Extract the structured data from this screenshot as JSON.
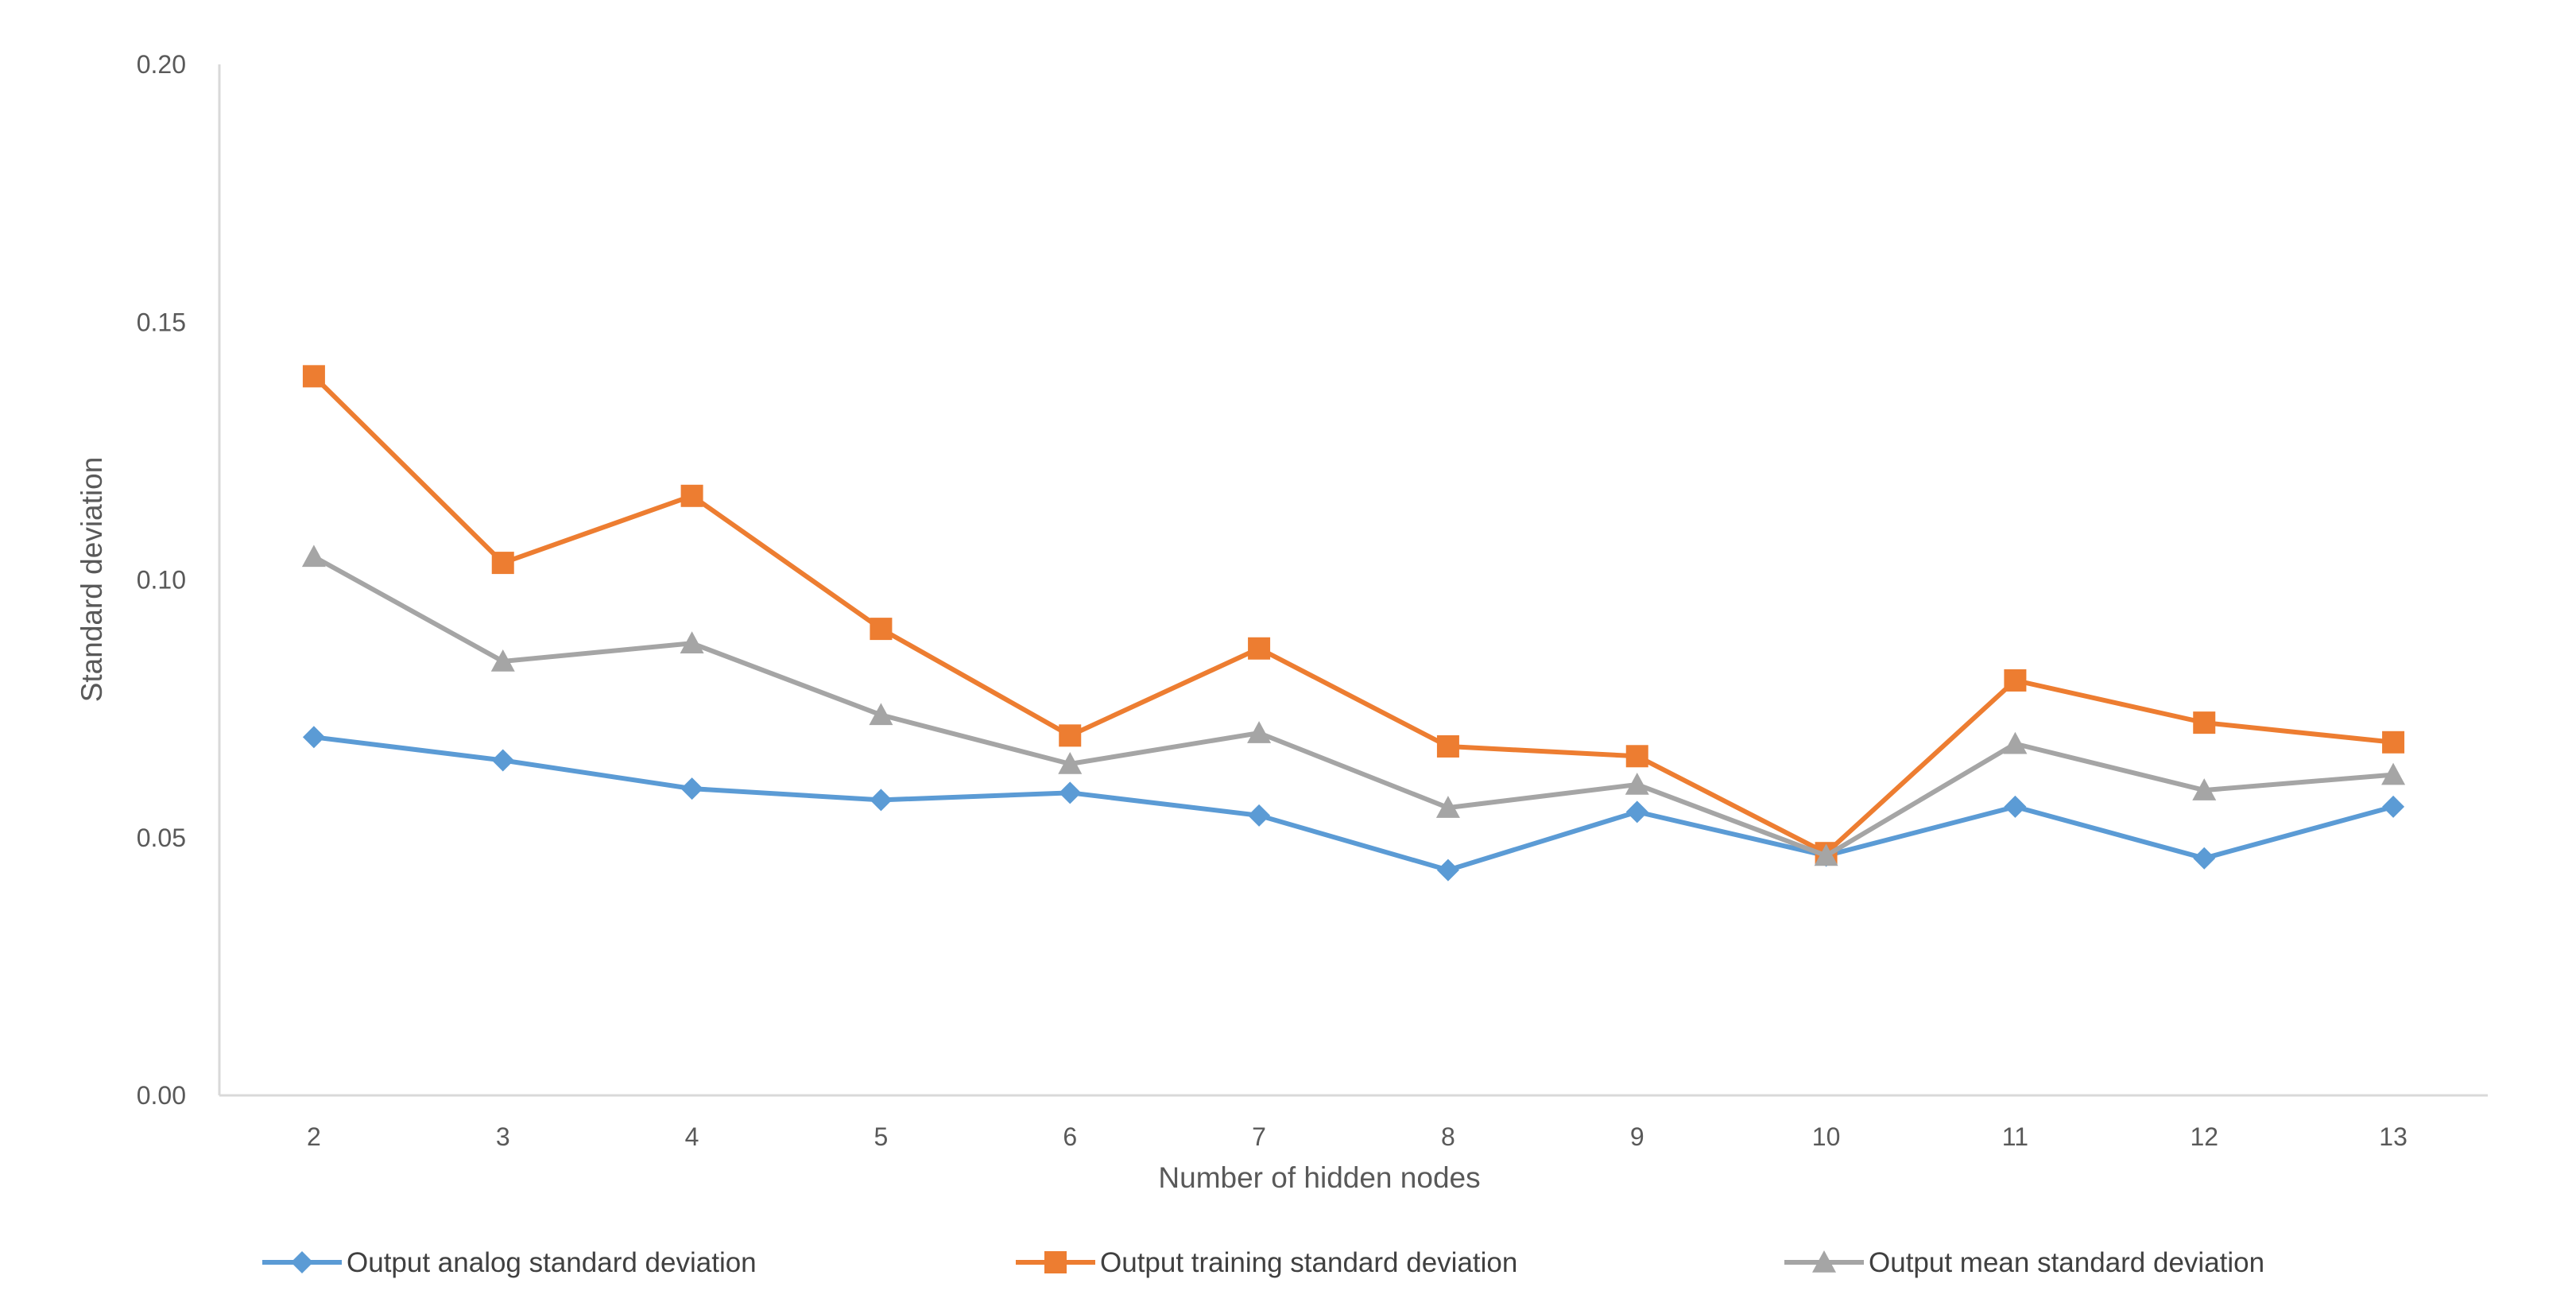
{
  "chart_data": {
    "type": "line",
    "title": "",
    "xlabel": "Number of hidden nodes",
    "ylabel": "Standard deviation",
    "categories": [
      "2",
      "3",
      "4",
      "5",
      "6",
      "7",
      "8",
      "9",
      "10",
      "11",
      "12",
      "13"
    ],
    "ylim": [
      0,
      0.2
    ],
    "yticks": [
      "0.00",
      "0.05",
      "0.10",
      "0.15",
      "0.20"
    ],
    "grid": false,
    "legend_position": "bottom",
    "series": [
      {
        "name": "Output analog standard deviation",
        "color": "#5B9BD5",
        "marker": "diamond",
        "values": [
          0.0695,
          0.065,
          0.0595,
          0.0573,
          0.0587,
          0.0543,
          0.0437,
          0.055,
          0.0465,
          0.056,
          0.046,
          0.056
        ]
      },
      {
        "name": "Output training standard deviation",
        "color": "#ED7D31",
        "marker": "square",
        "values": [
          0.1395,
          0.1033,
          0.1163,
          0.0905,
          0.0698,
          0.0867,
          0.0677,
          0.0658,
          0.047,
          0.0805,
          0.0723,
          0.0685
        ]
      },
      {
        "name": "Output mean standard deviation",
        "color": "#A5A5A5",
        "marker": "triangle",
        "values": [
          0.1045,
          0.0842,
          0.0877,
          0.0738,
          0.0643,
          0.0703,
          0.0558,
          0.0603,
          0.0465,
          0.0682,
          0.0592,
          0.0622
        ]
      }
    ]
  }
}
